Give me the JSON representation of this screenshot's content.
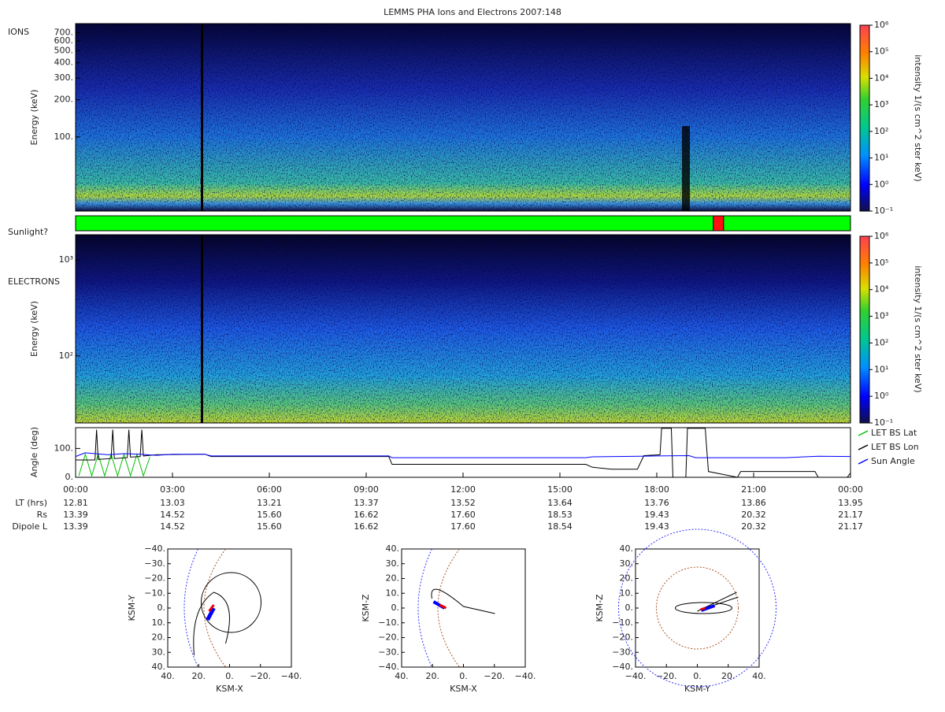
{
  "title": "LEMMS PHA Ions and Electrons  2007:148",
  "colorbar": {
    "label": "intensity 1/(s cm^2 ster keV)",
    "log": true,
    "lim": [
      0.1,
      1000000
    ],
    "ticks": [
      {
        "value": 0.1,
        "label": "10⁻¹"
      },
      {
        "value": 1,
        "label": "10⁰"
      },
      {
        "value": 10,
        "label": "10¹"
      },
      {
        "value": 100,
        "label": "10²"
      },
      {
        "value": 1000,
        "label": "10³"
      },
      {
        "value": 10000,
        "label": "10⁴"
      },
      {
        "value": 100000,
        "label": "10⁵"
      },
      {
        "value": 1000000,
        "label": "10⁶"
      }
    ]
  },
  "ions": {
    "label": "IONS",
    "ylabel": "Energy (keV)",
    "log": true,
    "ylim": [
      25,
      830
    ],
    "yticks": [
      {
        "value": 100,
        "label": "100."
      },
      {
        "value": 200,
        "label": "200."
      },
      {
        "value": 300,
        "label": "300."
      },
      {
        "value": 400,
        "label": "400."
      },
      {
        "value": 500,
        "label": "500."
      },
      {
        "value": 600,
        "label": "600."
      },
      {
        "value": 700,
        "label": "700."
      }
    ]
  },
  "sunlight": {
    "label": "Sunlight?",
    "color": "#00ff00",
    "eclipse_color": "#ff1010",
    "eclipse": [
      19.75,
      20.07
    ]
  },
  "electrons": {
    "label": "ELECTRONS",
    "ylabel": "Energy (keV)",
    "log": true,
    "ylim": [
      20,
      1830
    ],
    "yticks": [
      {
        "value": 100,
        "label": "10²"
      },
      {
        "value": 1000,
        "label": "10³"
      }
    ]
  },
  "angle": {
    "type": "line",
    "ylabel": "Angle (deg)",
    "ylim": [
      0,
      172
    ],
    "yticks": [
      {
        "value": 0,
        "label": "0."
      },
      {
        "value": 100,
        "label": "100."
      }
    ],
    "series": [
      {
        "name": "LET BS Lat",
        "color": "#00c000",
        "x": [
          0.1,
          0.3,
          0.5,
          0.7,
          0.9,
          1.1,
          1.3,
          1.5,
          1.7,
          1.9,
          2.1,
          2.3
        ],
        "values": [
          5,
          80,
          5,
          80,
          5,
          80,
          5,
          80,
          5,
          80,
          5,
          70
        ]
      },
      {
        "name": "LET BS Lon",
        "color": "#000000",
        "x": [
          0,
          0.6,
          0.65,
          0.7,
          1.1,
          1.15,
          1.2,
          1.6,
          1.65,
          1.7,
          2.0,
          2.05,
          2.1,
          2.5,
          4.0,
          4.2,
          9.7,
          9.8,
          15.8,
          16.0,
          16.6,
          17.4,
          17.6,
          18.1,
          18.15,
          18.45,
          18.5,
          18.9,
          18.95,
          19.5,
          19.6,
          20.5,
          20.6,
          22.9,
          23.0,
          23.9,
          24.0
        ],
        "values": [
          60,
          60,
          165,
          62,
          65,
          165,
          65,
          68,
          165,
          70,
          72,
          165,
          74,
          78,
          80,
          72,
          72,
          45,
          45,
          35,
          28,
          28,
          75,
          78,
          170,
          170,
          0,
          0,
          170,
          170,
          20,
          0,
          20,
          20,
          0,
          0,
          15
        ]
      },
      {
        "name": "Sun Angle",
        "color": "#0000ff",
        "x": [
          0,
          0.3,
          1.0,
          1.5,
          2.0,
          2.5,
          3.0,
          4.0,
          4.2,
          9.7,
          9.8,
          15.8,
          16.0,
          17.5,
          18.0,
          19.0,
          19.2,
          22.0,
          23.0,
          24.0
        ],
        "values": [
          72,
          85,
          78,
          82,
          80,
          76,
          80,
          80,
          74,
          74,
          68,
          68,
          71,
          73,
          74,
          75,
          68,
          68,
          73,
          72
        ]
      }
    ]
  },
  "time_axis": {
    "xlim": [
      0,
      24
    ],
    "xticks": [
      {
        "value": 0,
        "label": "00:00"
      },
      {
        "value": 3,
        "label": "03:00"
      },
      {
        "value": 6,
        "label": "06:00"
      },
      {
        "value": 9,
        "label": "09:00"
      },
      {
        "value": 12,
        "label": "12:00"
      },
      {
        "value": 15,
        "label": "15:00"
      },
      {
        "value": 18,
        "label": "18:00"
      },
      {
        "value": 21,
        "label": "21:00"
      },
      {
        "value": 24,
        "label": "00:00"
      }
    ]
  },
  "ephemeris": {
    "rows": [
      {
        "label": "LT (hrs)",
        "values": [
          "12.81",
          "13.03",
          "13.21",
          "13.37",
          "13.52",
          "13.64",
          "13.76",
          "13.86",
          "13.95"
        ]
      },
      {
        "label": "Rs",
        "values": [
          "13.39",
          "14.52",
          "15.60",
          "16.62",
          "17.60",
          "18.53",
          "19.43",
          "20.32",
          "21.17"
        ]
      },
      {
        "label": "Dipole L",
        "values": [
          "13.39",
          "14.52",
          "15.60",
          "16.62",
          "17.60",
          "18.54",
          "19.43",
          "20.32",
          "21.17"
        ]
      }
    ]
  },
  "orbits": [
    {
      "xlabel": "KSM-X",
      "ylabel": "KSM-Y",
      "xlim": [
        40,
        -40
      ],
      "ylim": [
        40,
        -40
      ],
      "xticks": [
        {
          "value": 40,
          "label": "40."
        },
        {
          "value": 20,
          "label": "20."
        },
        {
          "value": 0,
          "label": "0."
        },
        {
          "value": -20,
          "label": "−20."
        },
        {
          "value": -40,
          "label": "−40."
        }
      ],
      "yticks": [
        {
          "value": -40,
          "label": "−40."
        },
        {
          "value": -30,
          "label": "−30."
        },
        {
          "value": -20,
          "label": "−20."
        },
        {
          "value": -10,
          "label": "−10."
        },
        {
          "value": 0,
          "label": "0."
        },
        {
          "value": 10,
          "label": "10."
        },
        {
          "value": 20,
          "label": "20."
        },
        {
          "value": 30,
          "label": "30."
        },
        {
          "value": 40,
          "label": "40."
        }
      ]
    },
    {
      "xlabel": "KSM-X",
      "ylabel": "KSM-Z",
      "xlim": [
        40,
        -40
      ],
      "ylim": [
        -40,
        40
      ],
      "xticks": [
        {
          "value": 40,
          "label": "40."
        },
        {
          "value": 20,
          "label": "20."
        },
        {
          "value": 0,
          "label": "0."
        },
        {
          "value": -20,
          "label": "−20."
        },
        {
          "value": -40,
          "label": "−40."
        }
      ],
      "yticks": [
        {
          "value": -40,
          "label": "−40."
        },
        {
          "value": -30,
          "label": "−30."
        },
        {
          "value": -20,
          "label": "−20."
        },
        {
          "value": -10,
          "label": "−10."
        },
        {
          "value": 0,
          "label": "0."
        },
        {
          "value": 10,
          "label": "10."
        },
        {
          "value": 20,
          "label": "20."
        },
        {
          "value": 30,
          "label": "30."
        },
        {
          "value": 40,
          "label": "40."
        }
      ]
    },
    {
      "xlabel": "KSM-Y",
      "ylabel": "KSM-Z",
      "xlim": [
        -40,
        40
      ],
      "ylim": [
        -40,
        40
      ],
      "xticks": [
        {
          "value": -40,
          "label": "−40."
        },
        {
          "value": -20,
          "label": "−20."
        },
        {
          "value": 0,
          "label": "0."
        },
        {
          "value": 20,
          "label": "20."
        },
        {
          "value": 40,
          "label": "40."
        }
      ],
      "yticks": [
        {
          "value": -40,
          "label": "−40."
        },
        {
          "value": -30,
          "label": "−30."
        },
        {
          "value": -20,
          "label": "−20."
        },
        {
          "value": -10,
          "label": "−10."
        },
        {
          "value": 0,
          "label": "0."
        },
        {
          "value": 10,
          "label": "10."
        },
        {
          "value": 20,
          "label": "20."
        },
        {
          "value": 30,
          "label": "30."
        },
        {
          "value": 40,
          "label": "40."
        }
      ]
    }
  ]
}
